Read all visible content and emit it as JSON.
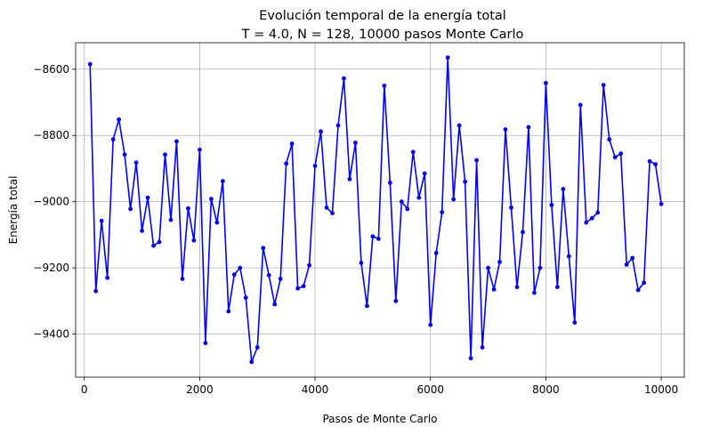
{
  "chart_data": {
    "type": "line",
    "title": "Evolución temporal de la energía total",
    "subtitle": "T = 4.0, N = 128, 10000 pasos Monte Carlo",
    "xlabel": "Pasos de Monte Carlo",
    "ylabel": "Energía total",
    "xlim": [
      -150,
      10400
    ],
    "ylim": [
      -9530,
      -8520
    ],
    "xticks": [
      0,
      2000,
      4000,
      6000,
      8000,
      10000
    ],
    "yticks": [
      -9400,
      -9200,
      -9000,
      -8800,
      -8600
    ],
    "grid": true,
    "line_color": "#0000ff",
    "marker": "circle",
    "series": [
      {
        "x": [
          100,
          200,
          300,
          400,
          500,
          600,
          700,
          800,
          900,
          1000,
          1100,
          1200,
          1300,
          1400,
          1500,
          1600,
          1700,
          1800,
          1900,
          2000,
          2100,
          2200,
          2300,
          2400,
          2500,
          2600,
          2700,
          2800,
          2900,
          3000,
          3100,
          3200,
          3300,
          3400,
          3500,
          3600,
          3700,
          3800,
          3900,
          4000,
          4100,
          4200,
          4300,
          4400,
          4500,
          4600,
          4700,
          4800,
          4900,
          5000,
          5100,
          5200,
          5300,
          5400,
          5500,
          5600,
          5700,
          5800,
          5900,
          6000,
          6100,
          6200,
          6300,
          6400,
          6500,
          6600,
          6700,
          6800,
          6900,
          7000,
          7100,
          7200,
          7300,
          7400,
          7500,
          7600,
          7700,
          7800,
          7900,
          8000,
          8100,
          8200,
          8300,
          8400,
          8500,
          8600,
          8700,
          8800,
          8900,
          9000,
          9100,
          9200,
          9300,
          9400,
          9500,
          9600,
          9700,
          9800,
          9900,
          10000
        ],
        "values": [
          -8585,
          -9270,
          -9058,
          -9230,
          -8812,
          -8752,
          -8858,
          -9022,
          -8882,
          -9088,
          -8988,
          -9133,
          -9122,
          -8858,
          -9055,
          -8818,
          -9233,
          -9020,
          -9117,
          -8843,
          -9427,
          -8992,
          -9063,
          -8938,
          -9331,
          -9220,
          -9200,
          -9290,
          -9484,
          -9440,
          -9140,
          -9222,
          -9310,
          -9233,
          -8885,
          -8825,
          -9262,
          -9255,
          -9192,
          -8892,
          -8788,
          -9018,
          -9035,
          -8770,
          -8628,
          -8932,
          -8822,
          -9185,
          -9315,
          -9105,
          -9112,
          -8650,
          -8943,
          -9300,
          -9000,
          -9022,
          -8850,
          -8988,
          -8915,
          -9372,
          -9155,
          -9032,
          -8565,
          -8993,
          -8770,
          -8940,
          -9473,
          -8875,
          -9440,
          -9200,
          -9265,
          -9182,
          -8782,
          -9018,
          -9258,
          -9092,
          -8775,
          -9275,
          -9200,
          -8642,
          -9010,
          -9258,
          -8962,
          -9165,
          -9365,
          -8708,
          -9063,
          -9050,
          -9033,
          -8648,
          -8812,
          -8866,
          -8855,
          -9190,
          -9170,
          -9267,
          -9245,
          -8878,
          -8887,
          -9007
        ]
      }
    ]
  }
}
